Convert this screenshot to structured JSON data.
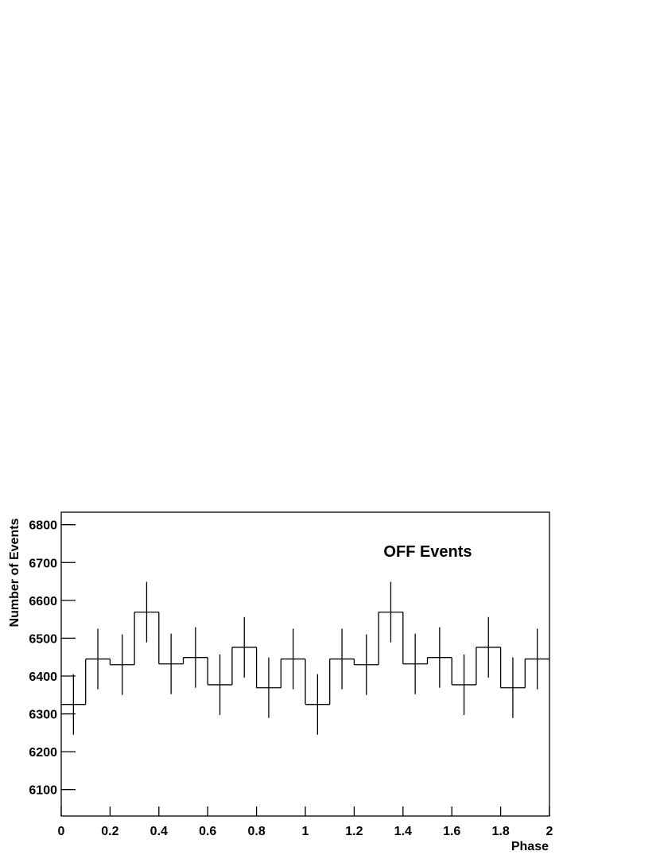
{
  "chart_data": {
    "type": "histogram",
    "annotation": "OFF Events",
    "x_label": "Phase",
    "y_label": "Number of Events",
    "bins": [
      0,
      0.1,
      0.2,
      0.3,
      0.4,
      0.5,
      0.6,
      0.7,
      0.8,
      0.9,
      1,
      1.1,
      1.2,
      1.3,
      1.4,
      1.5,
      1.6,
      1.7,
      1.8,
      1.9,
      2
    ],
    "values": [
      6325,
      6445,
      6430,
      6569,
      6432,
      6449,
      6377,
      6476,
      6369,
      6445,
      6325,
      6445,
      6430,
      6569,
      6432,
      6449,
      6377,
      6476,
      6369,
      6445
    ],
    "errors": [
      80,
      80,
      80,
      80,
      80,
      80,
      80,
      80,
      80,
      80,
      80,
      80,
      80,
      80,
      80,
      80,
      80,
      80,
      80,
      80
    ],
    "color": "#000000",
    "xlim": [
      0,
      2
    ],
    "ylim": [
      6030,
      6833
    ],
    "xticks": [
      0,
      0.2,
      0.4,
      0.6,
      0.8,
      1,
      1.2,
      1.4,
      1.6,
      1.8,
      2
    ],
    "yticks": [
      6100,
      6200,
      6300,
      6400,
      6500,
      6600,
      6700,
      6800
    ]
  }
}
